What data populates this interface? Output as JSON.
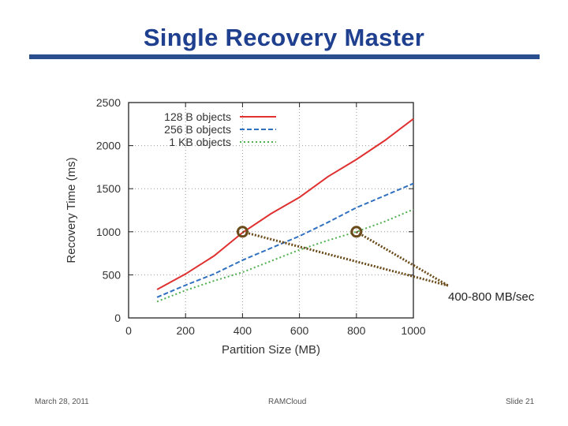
{
  "slide": {
    "title": "Single Recovery Master",
    "footer_date": "March 28, 2011",
    "footer_center": "RAMCloud",
    "footer_slide": "Slide 21"
  },
  "annotation": {
    "text": "400-800 MB/sec",
    "color": "#6b4b1a",
    "points": [
      [
        400,
        1000
      ],
      [
        800,
        1000
      ]
    ]
  },
  "chart_data": {
    "type": "line",
    "title": "",
    "xlabel": "Partition Size (MB)",
    "ylabel": "Recovery Time (ms)",
    "xlim": [
      0,
      1000
    ],
    "ylim": [
      0,
      2500
    ],
    "x_ticks": [
      0,
      200,
      400,
      600,
      800,
      1000
    ],
    "y_ticks": [
      0,
      500,
      1000,
      1500,
      2000,
      2500
    ],
    "grid": true,
    "legend_position": "top-left",
    "series": [
      {
        "name": "128 B objects",
        "color": "#e03030",
        "style": "solid",
        "x": [
          100,
          200,
          300,
          400,
          500,
          600,
          700,
          800,
          900,
          1000
        ],
        "y": [
          330,
          510,
          720,
          990,
          1210,
          1400,
          1640,
          1840,
          2060,
          2310
        ]
      },
      {
        "name": "256 B objects",
        "color": "#3070c0",
        "style": "dashed",
        "x": [
          100,
          200,
          300,
          400,
          500,
          600,
          700,
          800,
          900,
          1000
        ],
        "y": [
          240,
          380,
          510,
          670,
          810,
          950,
          1110,
          1280,
          1420,
          1560
        ]
      },
      {
        "name": "1 KB objects",
        "color": "#50b050",
        "style": "dotted",
        "x": [
          100,
          200,
          300,
          400,
          500,
          600,
          700,
          800,
          900,
          1000
        ],
        "y": [
          190,
          320,
          430,
          530,
          660,
          790,
          900,
          1000,
          1120,
          1260
        ]
      }
    ]
  }
}
